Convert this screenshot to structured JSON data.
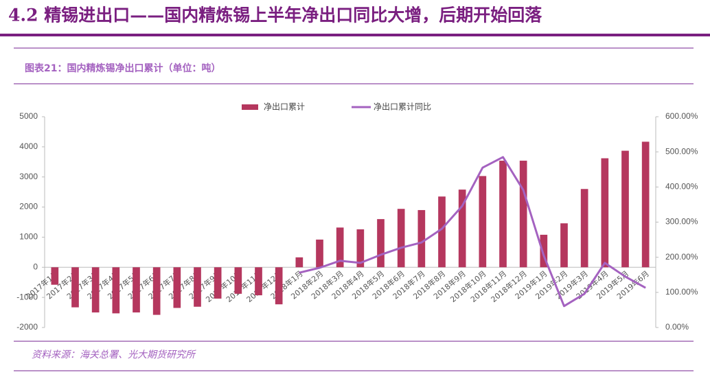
{
  "header": {
    "title": "4.2 精锡进出口——国内精炼锡上半年净出口同比大增，后期开始回落"
  },
  "chart_data": {
    "type": "bar_line",
    "title": "图表21：国内精炼锡净出口累计（单位：吨）",
    "source": "资料来源：海关总署、光大期货研究所",
    "categories": [
      "2017年1月",
      "2017年2月",
      "2017年3月",
      "2017年4月",
      "2017年5月",
      "2017年6月",
      "2017年7月",
      "2017年8月",
      "2017年9月",
      "2017年10月",
      "2017年11月",
      "2017年12月",
      "2018年1月",
      "2018年2月",
      "2018年3月",
      "2018年4月",
      "2018年5月",
      "2018年6月",
      "2018年7月",
      "2018年8月",
      "2018年9月",
      "2018年10月",
      "2018年11月",
      "2018年12月",
      "2019年1月",
      "2019年2月",
      "2019年3月",
      "2019年4月",
      "2019年5月",
      "2019年6月"
    ],
    "series": [
      {
        "name": "净出口累计",
        "color": "#b5375e",
        "type": "bar",
        "values": [
          -580,
          -1330,
          -1500,
          -1530,
          -1500,
          -1580,
          -1350,
          -1310,
          -1040,
          -880,
          -930,
          -1230,
          330,
          920,
          1320,
          1260,
          1600,
          1940,
          1900,
          2350,
          2580,
          3030,
          3540,
          3540,
          1080,
          1460,
          2600,
          3620,
          3870,
          4170
        ]
      },
      {
        "name": "净出口累计同比",
        "color": "#a462c0",
        "type": "line",
        "axis": "y2",
        "values": [
          null,
          null,
          null,
          null,
          null,
          null,
          null,
          null,
          null,
          null,
          null,
          null,
          156,
          170,
          190,
          184,
          207,
          227,
          242,
          281,
          346,
          455,
          485,
          391,
          205,
          61,
          96,
          184,
          145,
          113
        ]
      }
    ],
    "ylim": [
      -2000,
      5000
    ],
    "yticks": [
      -2000,
      -1000,
      0,
      1000,
      2000,
      3000,
      4000,
      5000
    ],
    "y2lim": [
      0,
      600
    ],
    "y2ticks": [
      {
        "value": 0,
        "label": "0.00%"
      },
      {
        "value": 100,
        "label": "100.00%"
      },
      {
        "value": 200,
        "label": "200.00%"
      },
      {
        "value": 300,
        "label": "300.00%"
      },
      {
        "value": 400,
        "label": "400.00%"
      },
      {
        "value": 500,
        "label": "500.00%"
      },
      {
        "value": 600,
        "label": "600.00%"
      }
    ],
    "legend": "top"
  }
}
